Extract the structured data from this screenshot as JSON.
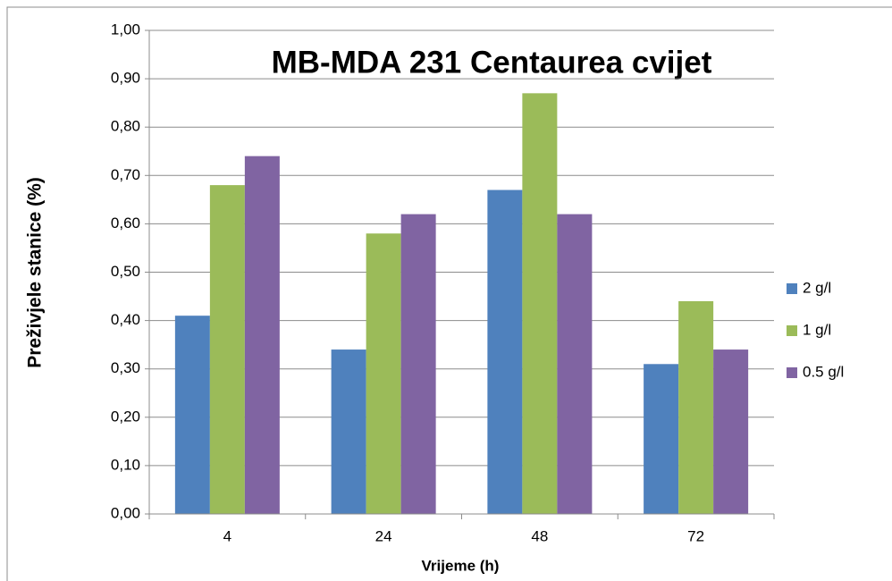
{
  "chart_data": {
    "type": "bar",
    "title": "MB-MDA 231 Centaurea cvijet",
    "x_label": "Vrijeme (h)",
    "y_label": "Preživjele stanice (%)",
    "categories": [
      "4",
      "24",
      "48",
      "72"
    ],
    "series": [
      {
        "name": "2 g/l",
        "color": "#4f81bd",
        "values": [
          0.41,
          0.34,
          0.67,
          0.31
        ]
      },
      {
        "name": "1 g/l",
        "color": "#9bbb59",
        "values": [
          0.68,
          0.58,
          0.87,
          0.44
        ]
      },
      {
        "name": "0.5 g/l",
        "color": "#8064a2",
        "values": [
          0.74,
          0.62,
          0.62,
          0.34
        ]
      }
    ],
    "ylim": [
      0,
      1
    ],
    "yticks": [
      {
        "value": 0,
        "label": "0,00"
      },
      {
        "value": 0.1,
        "label": "0,10"
      },
      {
        "value": 0.2,
        "label": "0,20"
      },
      {
        "value": 0.3,
        "label": "0,30"
      },
      {
        "value": 0.4,
        "label": "0,40"
      },
      {
        "value": 0.5,
        "label": "0,50"
      },
      {
        "value": 0.6,
        "label": "0,60"
      },
      {
        "value": 0.7,
        "label": "0,70"
      },
      {
        "value": 0.8,
        "label": "0,80"
      },
      {
        "value": 0.9,
        "label": "0,90"
      },
      {
        "value": 1,
        "label": "1,00"
      }
    ],
    "grid": true,
    "legend": "right"
  }
}
